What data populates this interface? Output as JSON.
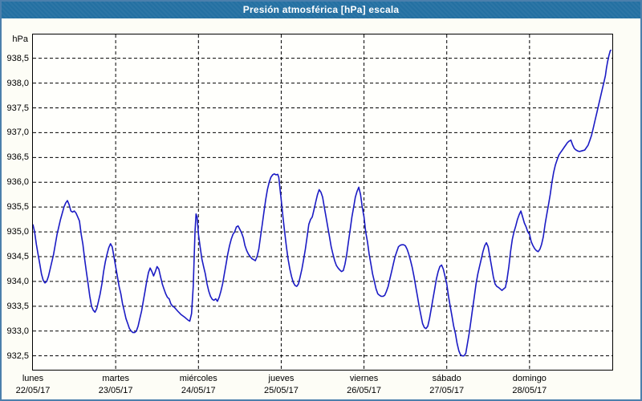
{
  "window": {
    "title": "Presión atmosférica [hPa] escala",
    "title_bar_color": "#2470a2",
    "frame_border_color": "#4b7fac"
  },
  "chart_data": {
    "type": "line",
    "title": "Presión atmosférica [hPa] escala",
    "unit_label": "hPa",
    "line_color": "#1b1bc4",
    "gridline_color": "#000000",
    "grid_style": "dashed",
    "legend_position": "none",
    "xlim_hours": [
      0,
      168
    ],
    "ylim": [
      932.22,
      938.98
    ],
    "x_ticks": [
      {
        "hour": 0,
        "day": "lunes",
        "date": "22/05/17"
      },
      {
        "hour": 24,
        "day": "martes",
        "date": "23/05/17"
      },
      {
        "hour": 48,
        "day": "miércoles",
        "date": "24/05/17"
      },
      {
        "hour": 72,
        "day": "jueves",
        "date": "25/05/17"
      },
      {
        "hour": 96,
        "day": "viernes",
        "date": "26/05/17"
      },
      {
        "hour": 120,
        "day": "sábado",
        "date": "27/05/17"
      },
      {
        "hour": 144,
        "day": "domingo",
        "date": "28/05/17"
      }
    ],
    "x_gridlines_hours": [
      24,
      48,
      72,
      96,
      120,
      144
    ],
    "y_ticks": [
      {
        "value": 938.5,
        "label": "938,5"
      },
      {
        "value": 938.0,
        "label": "938,0"
      },
      {
        "value": 937.5,
        "label": "937,5"
      },
      {
        "value": 937.0,
        "label": "937,0"
      },
      {
        "value": 936.5,
        "label": "936,5"
      },
      {
        "value": 936.0,
        "label": "936,0"
      },
      {
        "value": 935.5,
        "label": "935,5"
      },
      {
        "value": 935.0,
        "label": "935,0"
      },
      {
        "value": 934.5,
        "label": "934,5"
      },
      {
        "value": 934.0,
        "label": "934,0"
      },
      {
        "value": 933.5,
        "label": "933,5"
      },
      {
        "value": 933.0,
        "label": "933,0"
      },
      {
        "value": 932.5,
        "label": "932,5"
      }
    ],
    "points": [
      [
        0,
        935.15
      ],
      [
        0.5,
        935.0
      ],
      [
        1,
        934.75
      ],
      [
        1.5,
        934.55
      ],
      [
        2,
        934.35
      ],
      [
        2.5,
        934.15
      ],
      [
        3,
        934.02
      ],
      [
        3.5,
        933.97
      ],
      [
        4,
        934.0
      ],
      [
        4.5,
        934.1
      ],
      [
        5,
        934.25
      ],
      [
        6,
        934.55
      ],
      [
        7,
        934.95
      ],
      [
        8,
        935.25
      ],
      [
        9,
        935.5
      ],
      [
        9.5,
        935.58
      ],
      [
        10,
        935.63
      ],
      [
        10.5,
        935.55
      ],
      [
        11,
        935.42
      ],
      [
        11.5,
        935.4
      ],
      [
        12,
        935.42
      ],
      [
        12.5,
        935.38
      ],
      [
        13,
        935.3
      ],
      [
        13.5,
        935.22
      ],
      [
        14,
        934.95
      ],
      [
        14.5,
        934.75
      ],
      [
        15,
        934.45
      ],
      [
        15.5,
        934.2
      ],
      [
        16,
        933.95
      ],
      [
        16.5,
        933.7
      ],
      [
        17,
        933.5
      ],
      [
        17.5,
        933.42
      ],
      [
        18,
        933.38
      ],
      [
        18.5,
        933.45
      ],
      [
        19,
        933.6
      ],
      [
        19.5,
        933.75
      ],
      [
        20,
        933.95
      ],
      [
        20.5,
        934.2
      ],
      [
        21,
        934.4
      ],
      [
        21.5,
        934.55
      ],
      [
        22,
        934.68
      ],
      [
        22.5,
        934.76
      ],
      [
        23,
        934.7
      ],
      [
        23.5,
        934.5
      ],
      [
        24,
        934.3
      ],
      [
        24.5,
        934.1
      ],
      [
        25,
        933.9
      ],
      [
        25.5,
        933.75
      ],
      [
        26,
        933.55
      ],
      [
        26.5,
        933.4
      ],
      [
        27,
        933.25
      ],
      [
        27.5,
        933.15
      ],
      [
        28,
        933.05
      ],
      [
        28.5,
        933.0
      ],
      [
        29,
        932.97
      ],
      [
        29.5,
        932.97
      ],
      [
        30,
        933.0
      ],
      [
        30.5,
        933.1
      ],
      [
        31,
        933.25
      ],
      [
        31.5,
        933.4
      ],
      [
        32,
        933.6
      ],
      [
        32.5,
        933.8
      ],
      [
        33,
        934.0
      ],
      [
        33.5,
        934.18
      ],
      [
        34,
        934.27
      ],
      [
        34.5,
        934.2
      ],
      [
        35,
        934.11
      ],
      [
        35.5,
        934.2
      ],
      [
        36,
        934.3
      ],
      [
        36.5,
        934.25
      ],
      [
        37,
        934.1
      ],
      [
        37.5,
        933.95
      ],
      [
        38,
        933.85
      ],
      [
        38.5,
        933.75
      ],
      [
        39,
        933.68
      ],
      [
        39.5,
        933.65
      ],
      [
        40,
        933.55
      ],
      [
        40.5,
        933.5
      ],
      [
        41,
        933.48
      ],
      [
        42,
        933.4
      ],
      [
        43,
        933.33
      ],
      [
        44,
        933.28
      ],
      [
        44.5,
        933.25
      ],
      [
        45,
        933.22
      ],
      [
        45.5,
        933.2
      ],
      [
        46,
        933.35
      ],
      [
        46.5,
        933.9
      ],
      [
        47,
        935.0
      ],
      [
        47.3,
        935.36
      ],
      [
        47.6,
        935.3
      ],
      [
        48,
        934.95
      ],
      [
        48.5,
        934.7
      ],
      [
        49,
        934.45
      ],
      [
        49.5,
        934.3
      ],
      [
        50,
        934.15
      ],
      [
        50.5,
        933.95
      ],
      [
        51,
        933.8
      ],
      [
        51.5,
        933.7
      ],
      [
        52,
        933.64
      ],
      [
        52.5,
        933.62
      ],
      [
        53,
        933.65
      ],
      [
        53.5,
        933.6
      ],
      [
        54,
        933.68
      ],
      [
        54.5,
        933.8
      ],
      [
        55,
        933.95
      ],
      [
        55.5,
        934.15
      ],
      [
        56,
        934.35
      ],
      [
        56.5,
        934.55
      ],
      [
        57,
        934.72
      ],
      [
        57.5,
        934.85
      ],
      [
        58,
        934.95
      ],
      [
        58.5,
        935.0
      ],
      [
        59,
        935.1
      ],
      [
        59.5,
        935.12
      ],
      [
        60,
        935.05
      ],
      [
        60.5,
        934.98
      ],
      [
        61,
        934.88
      ],
      [
        61.5,
        934.72
      ],
      [
        62,
        934.62
      ],
      [
        62.5,
        934.55
      ],
      [
        63,
        934.5
      ],
      [
        63.5,
        934.46
      ],
      [
        64,
        934.44
      ],
      [
        64.5,
        934.42
      ],
      [
        65,
        934.5
      ],
      [
        65.5,
        934.65
      ],
      [
        66,
        934.9
      ],
      [
        66.5,
        935.15
      ],
      [
        67,
        935.4
      ],
      [
        67.5,
        935.65
      ],
      [
        68,
        935.85
      ],
      [
        68.5,
        936.0
      ],
      [
        69,
        936.1
      ],
      [
        69.5,
        936.15
      ],
      [
        70,
        936.17
      ],
      [
        70.5,
        936.15
      ],
      [
        71,
        936.16
      ],
      [
        71.3,
        936.1
      ],
      [
        71.6,
        935.9
      ],
      [
        72,
        935.65
      ],
      [
        72.5,
        935.3
      ],
      [
        73,
        935.0
      ],
      [
        73.5,
        934.7
      ],
      [
        74,
        934.45
      ],
      [
        74.5,
        934.25
      ],
      [
        75,
        934.1
      ],
      [
        75.5,
        933.98
      ],
      [
        76,
        933.92
      ],
      [
        76.5,
        933.9
      ],
      [
        77,
        933.95
      ],
      [
        77.5,
        934.1
      ],
      [
        78,
        934.25
      ],
      [
        78.5,
        934.45
      ],
      [
        79,
        934.65
      ],
      [
        79.5,
        934.9
      ],
      [
        80,
        935.15
      ],
      [
        80.5,
        935.25
      ],
      [
        81,
        935.3
      ],
      [
        81.5,
        935.45
      ],
      [
        82,
        935.6
      ],
      [
        82.5,
        935.75
      ],
      [
        83,
        935.85
      ],
      [
        83.5,
        935.8
      ],
      [
        84,
        935.7
      ],
      [
        84.5,
        935.5
      ],
      [
        85,
        935.3
      ],
      [
        85.5,
        935.1
      ],
      [
        86,
        934.9
      ],
      [
        86.5,
        934.7
      ],
      [
        87,
        934.55
      ],
      [
        87.5,
        934.42
      ],
      [
        88,
        934.32
      ],
      [
        88.5,
        934.27
      ],
      [
        89,
        934.23
      ],
      [
        89.5,
        934.2
      ],
      [
        90,
        934.22
      ],
      [
        90.5,
        934.35
      ],
      [
        91,
        934.55
      ],
      [
        91.5,
        934.8
      ],
      [
        92,
        935.05
      ],
      [
        92.5,
        935.3
      ],
      [
        93,
        935.5
      ],
      [
        93.5,
        935.7
      ],
      [
        94,
        935.82
      ],
      [
        94.5,
        935.9
      ],
      [
        95,
        935.75
      ],
      [
        95.5,
        935.5
      ],
      [
        96,
        935.3
      ],
      [
        96.5,
        935.0
      ],
      [
        97,
        934.8
      ],
      [
        97.5,
        934.55
      ],
      [
        98,
        934.35
      ],
      [
        98.5,
        934.15
      ],
      [
        99,
        934.0
      ],
      [
        99.5,
        933.85
      ],
      [
        100,
        933.75
      ],
      [
        100.5,
        933.72
      ],
      [
        101,
        933.7
      ],
      [
        101.5,
        933.7
      ],
      [
        102,
        933.72
      ],
      [
        102.5,
        933.8
      ],
      [
        103,
        933.9
      ],
      [
        103.5,
        934.05
      ],
      [
        104,
        934.2
      ],
      [
        104.5,
        934.35
      ],
      [
        105,
        934.5
      ],
      [
        105.5,
        934.6
      ],
      [
        106,
        934.7
      ],
      [
        106.5,
        934.73
      ],
      [
        107,
        934.74
      ],
      [
        107.5,
        934.74
      ],
      [
        108,
        934.72
      ],
      [
        108.5,
        934.65
      ],
      [
        109,
        934.55
      ],
      [
        109.5,
        934.42
      ],
      [
        110,
        934.28
      ],
      [
        110.5,
        934.1
      ],
      [
        111,
        933.9
      ],
      [
        111.5,
        933.7
      ],
      [
        112,
        933.5
      ],
      [
        112.5,
        933.32
      ],
      [
        113,
        933.15
      ],
      [
        113.5,
        933.07
      ],
      [
        114,
        933.05
      ],
      [
        114.5,
        933.1
      ],
      [
        115,
        933.25
      ],
      [
        115.5,
        933.45
      ],
      [
        116,
        933.65
      ],
      [
        116.5,
        933.85
      ],
      [
        117,
        934.05
      ],
      [
        117.5,
        934.2
      ],
      [
        118,
        934.3
      ],
      [
        118.5,
        934.33
      ],
      [
        119,
        934.25
      ],
      [
        119.5,
        934.1
      ],
      [
        120,
        933.95
      ],
      [
        120.5,
        933.7
      ],
      [
        121,
        933.5
      ],
      [
        121.5,
        933.3
      ],
      [
        122,
        933.1
      ],
      [
        122.5,
        932.95
      ],
      [
        123,
        932.75
      ],
      [
        123.5,
        932.6
      ],
      [
        124,
        932.52
      ],
      [
        124.5,
        932.5
      ],
      [
        125,
        932.5
      ],
      [
        125.5,
        932.55
      ],
      [
        126,
        932.75
      ],
      [
        126.5,
        932.95
      ],
      [
        127,
        933.2
      ],
      [
        127.5,
        933.45
      ],
      [
        128,
        933.7
      ],
      [
        128.5,
        933.95
      ],
      [
        129,
        934.15
      ],
      [
        129.5,
        934.3
      ],
      [
        130,
        934.45
      ],
      [
        130.5,
        934.6
      ],
      [
        131,
        934.72
      ],
      [
        131.5,
        934.78
      ],
      [
        132,
        934.7
      ],
      [
        132.5,
        934.5
      ],
      [
        133,
        934.3
      ],
      [
        133.5,
        934.1
      ],
      [
        134,
        933.95
      ],
      [
        134.5,
        933.9
      ],
      [
        135,
        933.88
      ],
      [
        135.5,
        933.85
      ],
      [
        136,
        933.82
      ],
      [
        136.5,
        933.85
      ],
      [
        137,
        933.88
      ],
      [
        137.5,
        934.05
      ],
      [
        138,
        934.3
      ],
      [
        138.5,
        934.6
      ],
      [
        139,
        934.85
      ],
      [
        139.5,
        935.0
      ],
      [
        140,
        935.12
      ],
      [
        140.5,
        935.25
      ],
      [
        141,
        935.35
      ],
      [
        141.5,
        935.42
      ],
      [
        142,
        935.3
      ],
      [
        142.5,
        935.18
      ],
      [
        143,
        935.1
      ],
      [
        143.5,
        935.0
      ],
      [
        144,
        934.95
      ],
      [
        144.5,
        934.8
      ],
      [
        145,
        934.72
      ],
      [
        145.5,
        934.66
      ],
      [
        146,
        934.62
      ],
      [
        146.5,
        934.6
      ],
      [
        147,
        934.65
      ],
      [
        147.5,
        934.75
      ],
      [
        148,
        934.9
      ],
      [
        148.5,
        935.15
      ],
      [
        149,
        935.35
      ],
      [
        149.5,
        935.55
      ],
      [
        150,
        935.75
      ],
      [
        150.5,
        936.0
      ],
      [
        151,
        936.2
      ],
      [
        151.5,
        936.35
      ],
      [
        152,
        936.45
      ],
      [
        152.5,
        936.55
      ],
      [
        153,
        936.6
      ],
      [
        153.5,
        936.65
      ],
      [
        154,
        936.7
      ],
      [
        154.5,
        936.75
      ],
      [
        155,
        936.8
      ],
      [
        155.5,
        936.83
      ],
      [
        156,
        936.85
      ],
      [
        156.5,
        936.75
      ],
      [
        157,
        936.68
      ],
      [
        157.5,
        936.65
      ],
      [
        158,
        936.63
      ],
      [
        158.5,
        936.62
      ],
      [
        159,
        936.63
      ],
      [
        159.5,
        936.64
      ],
      [
        160,
        936.65
      ],
      [
        160.5,
        936.7
      ],
      [
        161,
        936.75
      ],
      [
        161.5,
        936.85
      ],
      [
        162,
        936.95
      ],
      [
        162.5,
        937.1
      ],
      [
        163,
        937.25
      ],
      [
        163.5,
        937.4
      ],
      [
        164,
        937.55
      ],
      [
        164.5,
        937.7
      ],
      [
        165,
        937.85
      ],
      [
        165.5,
        938.0
      ],
      [
        166,
        938.15
      ],
      [
        166.3,
        938.3
      ],
      [
        166.6,
        938.42
      ],
      [
        167,
        938.55
      ],
      [
        167.4,
        938.65
      ],
      [
        167.7,
        938.67
      ]
    ]
  }
}
